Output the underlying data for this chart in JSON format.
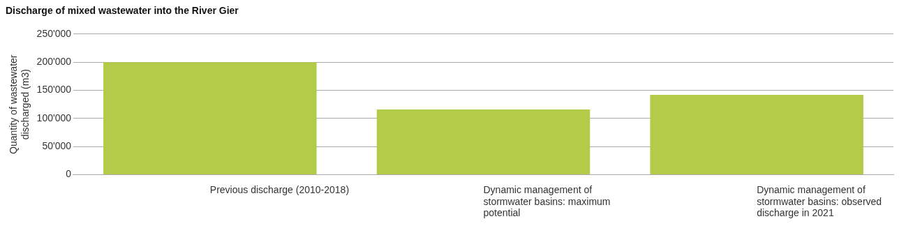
{
  "chart_data": {
    "type": "bar",
    "title": "Discharge of mixed wastewater into the River Gier",
    "ylabel": "Quantity of wastewater discharged (m3)",
    "categories": [
      "Previous discharge (2010-2018)",
      "Dynamic management of stormwater basins: maximum potential",
      "Dynamic management of stormwater basins: observed discharge in 2021"
    ],
    "values": [
      200000,
      116000,
      142000
    ],
    "color": "#b2cb48",
    "ylim": [
      0,
      250000
    ],
    "yticks": [
      {
        "value": 0,
        "label": "0"
      },
      {
        "value": 50000,
        "label": "50'000"
      },
      {
        "value": 100000,
        "label": "100'000"
      },
      {
        "value": 150000,
        "label": "150'000"
      },
      {
        "value": 200000,
        "label": "200'000"
      },
      {
        "value": 250000,
        "label": "250'000"
      }
    ],
    "grid": "y",
    "legend": false
  }
}
